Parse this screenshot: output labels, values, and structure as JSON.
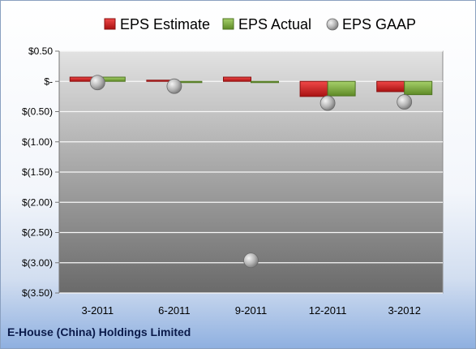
{
  "company_name": "E-House (China) Holdings Limited",
  "chart_data": {
    "type": "bar",
    "categories": [
      "3-2011",
      "6-2011",
      "9-2011",
      "12-2011",
      "3-2012"
    ],
    "series": [
      {
        "name": "EPS Estimate",
        "kind": "bar",
        "color": "#d42a2a",
        "values": [
          0.07,
          0.02,
          0.07,
          -0.25,
          -0.17
        ]
      },
      {
        "name": "EPS Actual",
        "kind": "bar",
        "color": "#8ab84a",
        "values": [
          0.07,
          -0.02,
          -0.02,
          -0.24,
          -0.22
        ]
      },
      {
        "name": "EPS GAAP",
        "kind": "marker",
        "color": "#a8a8a8",
        "values": [
          -0.02,
          -0.08,
          -2.96,
          -0.36,
          -0.34
        ]
      }
    ],
    "y_ticks": [
      {
        "value": 0.5,
        "label": "$0.50"
      },
      {
        "value": 0,
        "label": "$-"
      },
      {
        "value": -0.5,
        "label": "$(0.50)"
      },
      {
        "value": -1.0,
        "label": "$(1.00)"
      },
      {
        "value": -1.5,
        "label": "$(1.50)"
      },
      {
        "value": -2.0,
        "label": "$(2.00)"
      },
      {
        "value": -2.5,
        "label": "$(2.50)"
      },
      {
        "value": -3.0,
        "label": "$(3.00)"
      },
      {
        "value": -3.5,
        "label": "$(3.50)"
      }
    ],
    "ylim": [
      -3.5,
      0.5
    ],
    "grid": true,
    "legend_position": "top",
    "title": "",
    "xlabel": "",
    "ylabel": ""
  }
}
